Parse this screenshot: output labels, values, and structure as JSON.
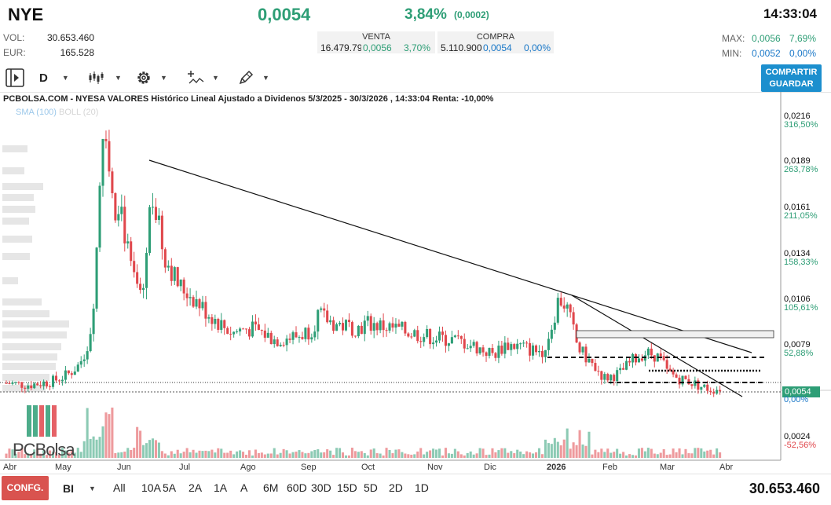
{
  "header": {
    "ticker": "NYE",
    "price": "0,0054",
    "change_pct": "3,84%",
    "change_abs": "(0,0002)",
    "time": "14:33:04"
  },
  "stats": {
    "vol_label": "VOL:",
    "vol_value": "30.653.460",
    "eur_label": "EUR:",
    "eur_value": "165.528"
  },
  "book": {
    "sell_title": "VENTA",
    "sell_qty": "16.479.79",
    "sell_price": "0,0056",
    "sell_pct": "3,70%",
    "buy_title": "COMPRA",
    "buy_qty": "5.110.900",
    "buy_price": "0,0054",
    "buy_pct": "0,00%"
  },
  "maxmin": {
    "max_label": "MAX:",
    "max_value": "0,0056",
    "max_pct": "7,69%",
    "min_label": "MIN:",
    "min_value": "0,0052",
    "min_pct": "0,00%"
  },
  "toolbar": {
    "period": "D",
    "share_line1": "COMPARTIR",
    "share_line2": "GUARDAR"
  },
  "chart_title": "PCBOLSA.COM - NYESA VALORES Histórico Lineal Ajustado a Dividenos 5/3/2025 - 30/3/2026 , 14:33:04 Renta: -10,00%",
  "legend": {
    "sma": "SMA (100)",
    "boll": "BOLL (20)"
  },
  "colors": {
    "up": "#2e9e76",
    "down": "#e0474c",
    "accent": "#1c8fce",
    "config": "#d9534f"
  },
  "chart_data": {
    "type": "line",
    "title": "PCBOLSA.COM - NYESA VALORES Histórico Lineal Ajustado a Dividenos 5/3/2025 - 30/3/2026 , 14:33:04 Renta: -10,00%",
    "y_ticks": [
      {
        "price": "0,0216",
        "pct": "316,50%"
      },
      {
        "price": "0,0189",
        "pct": "263,78%"
      },
      {
        "price": "0,0161",
        "pct": "211,05%"
      },
      {
        "price": "0,0134",
        "pct": "158,33%"
      },
      {
        "price": "0,0106",
        "pct": "105,61%"
      },
      {
        "price": "0,0079",
        "pct": "52,88%"
      }
    ],
    "volume_tick": {
      "price": "0,0024",
      "pct": "-52,56%"
    },
    "last": {
      "price": "0,0054",
      "pct": "0,00%"
    },
    "x_labels": [
      "Abr",
      "May",
      "Jun",
      "Jul",
      "Ago",
      "Sep",
      "Oct",
      "Nov",
      "Dic",
      "2026",
      "Feb",
      "Mar",
      "Abr"
    ],
    "ylim": [
      0.0035,
      0.0225
    ],
    "price_series": [
      {
        "t": 0.0,
        "v": 0.0057
      },
      {
        "t": 0.03,
        "v": 0.0056
      },
      {
        "t": 0.06,
        "v": 0.0058
      },
      {
        "t": 0.08,
        "v": 0.0062
      },
      {
        "t": 0.095,
        "v": 0.0068
      },
      {
        "t": 0.105,
        "v": 0.0078
      },
      {
        "t": 0.112,
        "v": 0.0095
      },
      {
        "t": 0.118,
        "v": 0.014
      },
      {
        "t": 0.124,
        "v": 0.02
      },
      {
        "t": 0.128,
        "v": 0.0225
      },
      {
        "t": 0.134,
        "v": 0.0185
      },
      {
        "t": 0.14,
        "v": 0.016
      },
      {
        "t": 0.148,
        "v": 0.017
      },
      {
        "t": 0.155,
        "v": 0.0145
      },
      {
        "t": 0.162,
        "v": 0.0125
      },
      {
        "t": 0.17,
        "v": 0.0115
      },
      {
        "t": 0.178,
        "v": 0.011
      },
      {
        "t": 0.185,
        "v": 0.015
      },
      {
        "t": 0.19,
        "v": 0.0175
      },
      {
        "t": 0.197,
        "v": 0.0155
      },
      {
        "t": 0.205,
        "v": 0.0135
      },
      {
        "t": 0.215,
        "v": 0.0125
      },
      {
        "t": 0.225,
        "v": 0.0115
      },
      {
        "t": 0.24,
        "v": 0.011
      },
      {
        "t": 0.26,
        "v": 0.01
      },
      {
        "t": 0.28,
        "v": 0.0092
      },
      {
        "t": 0.295,
        "v": 0.0087
      },
      {
        "t": 0.31,
        "v": 0.009
      },
      {
        "t": 0.33,
        "v": 0.0088
      },
      {
        "t": 0.35,
        "v": 0.0083
      },
      {
        "t": 0.38,
        "v": 0.0085
      },
      {
        "t": 0.4,
        "v": 0.009
      },
      {
        "t": 0.405,
        "v": 0.0098
      },
      {
        "t": 0.43,
        "v": 0.0092
      },
      {
        "t": 0.46,
        "v": 0.009
      },
      {
        "t": 0.47,
        "v": 0.0093
      },
      {
        "t": 0.5,
        "v": 0.009
      },
      {
        "t": 0.53,
        "v": 0.0087
      },
      {
        "t": 0.56,
        "v": 0.0084
      },
      {
        "t": 0.58,
        "v": 0.0083
      },
      {
        "t": 0.6,
        "v": 0.0081
      },
      {
        "t": 0.62,
        "v": 0.0077
      },
      {
        "t": 0.635,
        "v": 0.0074
      },
      {
        "t": 0.65,
        "v": 0.008
      },
      {
        "t": 0.67,
        "v": 0.0079
      },
      {
        "t": 0.69,
        "v": 0.0076
      },
      {
        "t": 0.7,
        "v": 0.0077
      },
      {
        "t": 0.71,
        "v": 0.009
      },
      {
        "t": 0.72,
        "v": 0.0108
      },
      {
        "t": 0.73,
        "v": 0.0103
      },
      {
        "t": 0.738,
        "v": 0.009
      },
      {
        "t": 0.745,
        "v": 0.0078
      },
      {
        "t": 0.76,
        "v": 0.007
      },
      {
        "t": 0.78,
        "v": 0.006
      },
      {
        "t": 0.8,
        "v": 0.0063
      },
      {
        "t": 0.815,
        "v": 0.007
      },
      {
        "t": 0.83,
        "v": 0.0075
      },
      {
        "t": 0.845,
        "v": 0.0074
      },
      {
        "t": 0.855,
        "v": 0.007
      },
      {
        "t": 0.86,
        "v": 0.0064
      },
      {
        "t": 0.875,
        "v": 0.006
      },
      {
        "t": 0.89,
        "v": 0.0058
      },
      {
        "t": 0.905,
        "v": 0.0055
      },
      {
        "t": 0.92,
        "v": 0.0053
      },
      {
        "t": 0.93,
        "v": 0.0054
      }
    ]
  },
  "bottom": {
    "config_label": "CONFG.",
    "bi_label": "BI",
    "ranges": [
      "All",
      "10A",
      "5A",
      "2A",
      "1A",
      "A",
      "6M",
      "60D",
      "30D",
      "15D",
      "5D",
      "2D",
      "1D"
    ],
    "volume_total": "30.653.460"
  },
  "logo": {
    "text_pc": "PC",
    "text_bolsa": "Bolsa"
  }
}
